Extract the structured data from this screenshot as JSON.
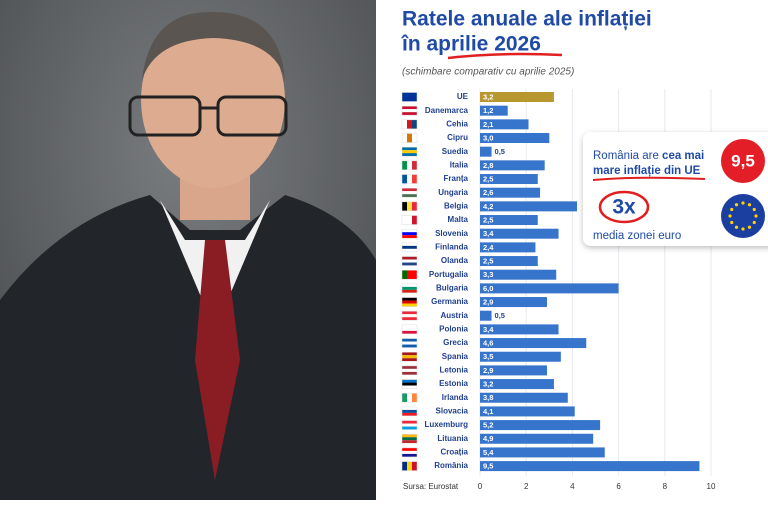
{
  "chart_data": {
    "type": "hbar",
    "title": [
      "Ratele anuale ale inflației",
      "în aprilie 2026"
    ],
    "subtitle": "(schimbare comparativ cu aprilie 2025)",
    "source": "Sursa: Eurostat",
    "categories": [
      "UE",
      "Danemarca",
      "Cehia",
      "Cipru",
      "Suedia",
      "Italia",
      "Franța",
      "Ungaria",
      "Belgia",
      "Malta",
      "Slovenia",
      "Finlanda",
      "Olanda",
      "Portugalia",
      "Bulgaria",
      "Germania",
      "Austria",
      "Polonia",
      "Grecia",
      "Spania",
      "Letonia",
      "Estonia",
      "Irlanda",
      "Slovacia",
      "Luxemburg",
      "Lituania",
      "Croația",
      "România"
    ],
    "values": [
      3.2,
      1.2,
      2.1,
      3.0,
      0.5,
      2.8,
      2.5,
      2.6,
      4.2,
      2.5,
      3.4,
      2.4,
      2.5,
      3.3,
      6.0,
      2.9,
      0.5,
      3.4,
      4.6,
      3.5,
      2.9,
      3.2,
      3.8,
      4.1,
      5.2,
      4.9,
      5.4,
      9.5
    ],
    "value_labels": [
      "3,2",
      "1,2",
      "2,1",
      "3,0",
      "0,5",
      "2,8",
      "2,5",
      "2,6",
      "4,2",
      "2,5",
      "3,4",
      "2,4",
      "2,5",
      "3,3",
      "6,0",
      "2,9",
      "0,5",
      "3,4",
      "4,6",
      "3,5",
      "2,9",
      "3,2",
      "3,8",
      "4,1",
      "5,2",
      "4,9",
      "5,4",
      "9,5"
    ],
    "color": "#3775cc",
    "highlight": {
      "index": 0,
      "color": "#b8972f"
    },
    "xlim": [
      0,
      10
    ],
    "xticks": [
      0,
      2,
      4,
      6,
      8,
      10
    ],
    "grid": true,
    "callout": {
      "line1a": "România are ",
      "line1b": "cea mai",
      "line2": "mare inflație din UE",
      "badge": "9,5",
      "multiplier": "3x",
      "caption": "media zonei euro"
    }
  }
}
